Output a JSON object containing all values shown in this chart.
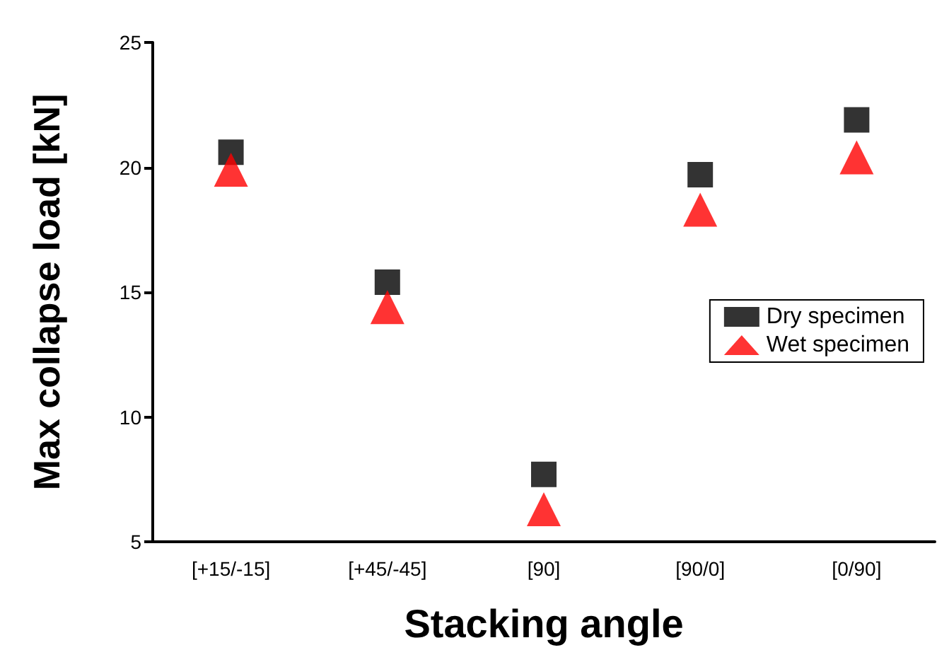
{
  "chart_data": {
    "type": "scatter",
    "xlabel": "Stacking angle",
    "ylabel": "Max collapse load [kN]",
    "categories": [
      "[+15/-15]",
      "[+45/-45]",
      "[90]",
      "[90/0]",
      "[0/90]"
    ],
    "ylim": [
      5,
      25
    ],
    "yticks": [
      5,
      10,
      15,
      20,
      25
    ],
    "grid": false,
    "legend": "right",
    "series": [
      {
        "name": "Dry specimen",
        "color": "#000000",
        "marker": "square",
        "values": [
          20.6,
          15.4,
          7.7,
          19.7,
          21.9
        ]
      },
      {
        "name": "Wet specimen",
        "color": "#ff0000",
        "marker": "triangle",
        "values": [
          19.9,
          14.4,
          6.3,
          18.3,
          20.4
        ]
      }
    ]
  }
}
